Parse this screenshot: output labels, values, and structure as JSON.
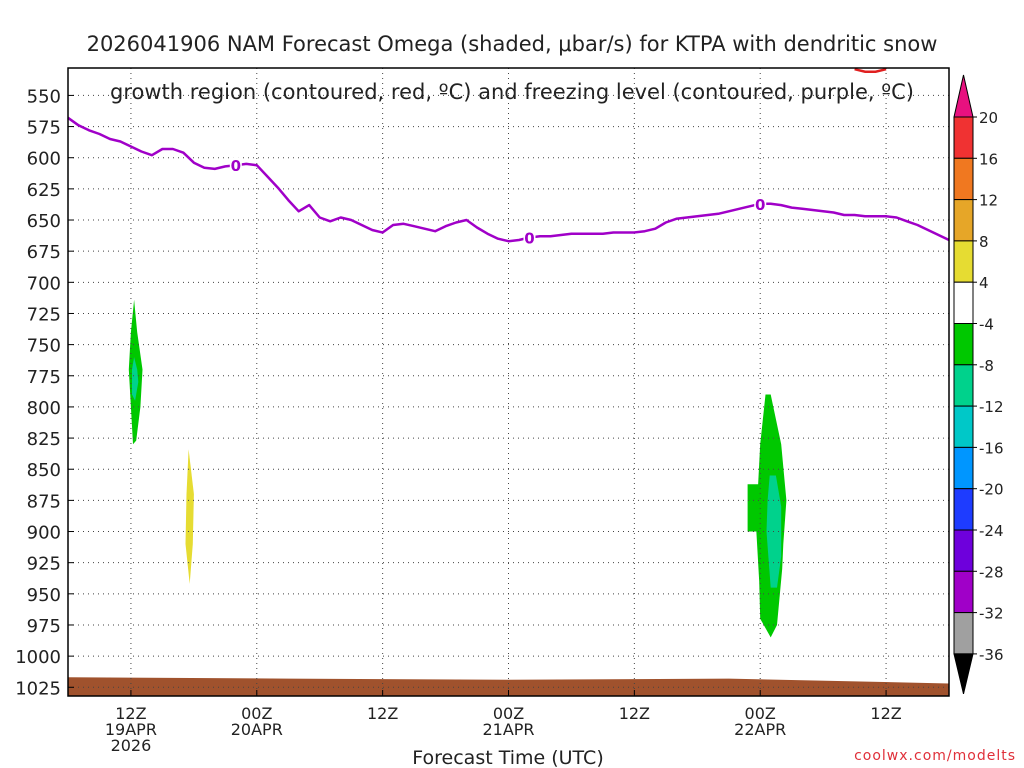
{
  "title": {
    "line1": "2026041906 NAM Forecast Omega (shaded, μbar/s) for KTPA with dendritic snow",
    "line2": "growth region (contoured, red, ºC) and freezing level (contoured, purple, ºC)"
  },
  "credit": "coolwx.com/modelts",
  "chart_data": {
    "type": "heatmap",
    "xlabel": "Forecast Time (UTC)",
    "x_unit": "hours since 2026-04-19 06Z",
    "xlim": [
      0,
      84
    ],
    "x_ticks": [
      {
        "x": 6,
        "lines": [
          "12Z",
          "19APR",
          "2026"
        ]
      },
      {
        "x": 18,
        "lines": [
          "00Z",
          "20APR"
        ]
      },
      {
        "x": 30,
        "lines": [
          "12Z"
        ]
      },
      {
        "x": 42,
        "lines": [
          "00Z",
          "21APR"
        ]
      },
      {
        "x": 54,
        "lines": [
          "12Z"
        ]
      },
      {
        "x": 66,
        "lines": [
          "00Z",
          "22APR"
        ]
      },
      {
        "x": 78,
        "lines": [
          "12Z"
        ]
      }
    ],
    "ylabel": "",
    "y_unit": "hPa",
    "ylim": [
      1032,
      528
    ],
    "y_ticks": [
      550,
      575,
      600,
      625,
      650,
      675,
      700,
      725,
      750,
      775,
      800,
      825,
      850,
      875,
      900,
      925,
      950,
      975,
      1000,
      1025
    ],
    "grid": true,
    "colorbar": {
      "labels": [
        "20",
        "16",
        "12",
        "8",
        "4",
        "-4",
        "-8",
        "-12",
        "-16",
        "-20",
        "-24",
        "-28",
        "-32",
        "-36"
      ],
      "colors": [
        "#e8117f",
        "#f03232",
        "#f07820",
        "#e6a628",
        "#e6dc32",
        "#ffffff",
        "#00c800",
        "#00d28c",
        "#00c8c8",
        "#0096ff",
        "#1e3cff",
        "#6e00dc",
        "#a000c8",
        "#a0a0a0",
        "#000000"
      ]
    },
    "freezing_level": {
      "color": "#a000c8",
      "label": "0",
      "label_x": [
        16,
        44,
        66
      ],
      "x": [
        0,
        1,
        2,
        3,
        4,
        5,
        6,
        7,
        8,
        9,
        10,
        11,
        12,
        13,
        14,
        15,
        16,
        17,
        18,
        19,
        20,
        21,
        22,
        23,
        24,
        25,
        26,
        27,
        28,
        29,
        30,
        31,
        32,
        33,
        34,
        35,
        36,
        37,
        38,
        39,
        40,
        41,
        42,
        43,
        44,
        45,
        46,
        47,
        48,
        49,
        50,
        51,
        52,
        53,
        54,
        55,
        56,
        57,
        58,
        59,
        60,
        61,
        62,
        63,
        64,
        65,
        66,
        67,
        68,
        69,
        70,
        71,
        72,
        73,
        74,
        75,
        76,
        77,
        78,
        79,
        80,
        81,
        82,
        83,
        84
      ],
      "y": [
        568,
        574,
        578,
        581,
        585,
        587,
        591,
        595,
        598,
        593,
        593,
        596,
        604,
        608,
        609,
        607,
        606,
        605,
        606,
        615,
        624,
        634,
        643,
        638,
        648,
        651,
        648,
        650,
        654,
        658,
        660,
        654,
        653,
        655,
        657,
        659,
        655,
        652,
        650,
        656,
        661,
        665,
        667,
        666,
        664,
        663,
        663,
        662,
        661,
        661,
        661,
        661,
        660,
        660,
        660,
        659,
        657,
        652,
        649,
        648,
        647,
        646,
        645,
        643,
        641,
        639,
        637,
        637,
        638,
        640,
        641,
        642,
        643,
        644,
        646,
        646,
        647,
        647,
        647,
        648,
        651,
        654,
        658,
        662,
        666
      ]
    },
    "dendritic_growth": {
      "color": "#e02020",
      "x": [
        75,
        76,
        77,
        78
      ],
      "y": [
        529,
        531,
        531,
        529
      ]
    },
    "omega_areas": [
      {
        "value": -6,
        "color": "#00c800",
        "x": [
          6.3,
          6.6,
          7.1,
          6.9,
          6.5,
          6.2,
          6.0,
          5.8,
          6.0,
          6.3
        ],
        "y": [
          714,
          740,
          770,
          800,
          827,
          830,
          800,
          770,
          740,
          714
        ]
      },
      {
        "value": -10,
        "color": "#00d28c",
        "x": [
          6.3,
          6.6,
          6.7,
          6.4,
          6.1,
          6.1
        ],
        "y": [
          760,
          770,
          780,
          795,
          790,
          770
        ]
      },
      {
        "value": 5,
        "color": "#e6dc32",
        "x": [
          11.5,
          12.0,
          11.9,
          11.6,
          11.2,
          11.3
        ],
        "y": [
          834,
          870,
          910,
          942,
          910,
          870
        ]
      },
      {
        "value": -6,
        "color": "#00c800",
        "x": [
          66.5,
          67.0,
          68.0,
          68.5,
          68.2,
          68.1,
          67.6,
          67.0,
          66.0,
          65.9,
          65.6,
          66.0,
          66.5
        ],
        "y": [
          790,
          790,
          830,
          875,
          910,
          930,
          975,
          985,
          970,
          940,
          895,
          830,
          790
        ]
      },
      {
        "value": -6,
        "color": "#00c800",
        "x": [
          64.8,
          66.2,
          66.2,
          64.8
        ],
        "y": [
          862,
          862,
          900,
          900
        ]
      },
      {
        "value": -10,
        "color": "#00d28c",
        "x": [
          66.9,
          67.5,
          68.0,
          68.0,
          67.6,
          67.0,
          66.6,
          66.7
        ],
        "y": [
          855,
          855,
          880,
          920,
          945,
          945,
          900,
          875
        ]
      }
    ],
    "terrain_top": [
      1017,
      1018,
      1019,
      1018,
      1022
    ]
  }
}
